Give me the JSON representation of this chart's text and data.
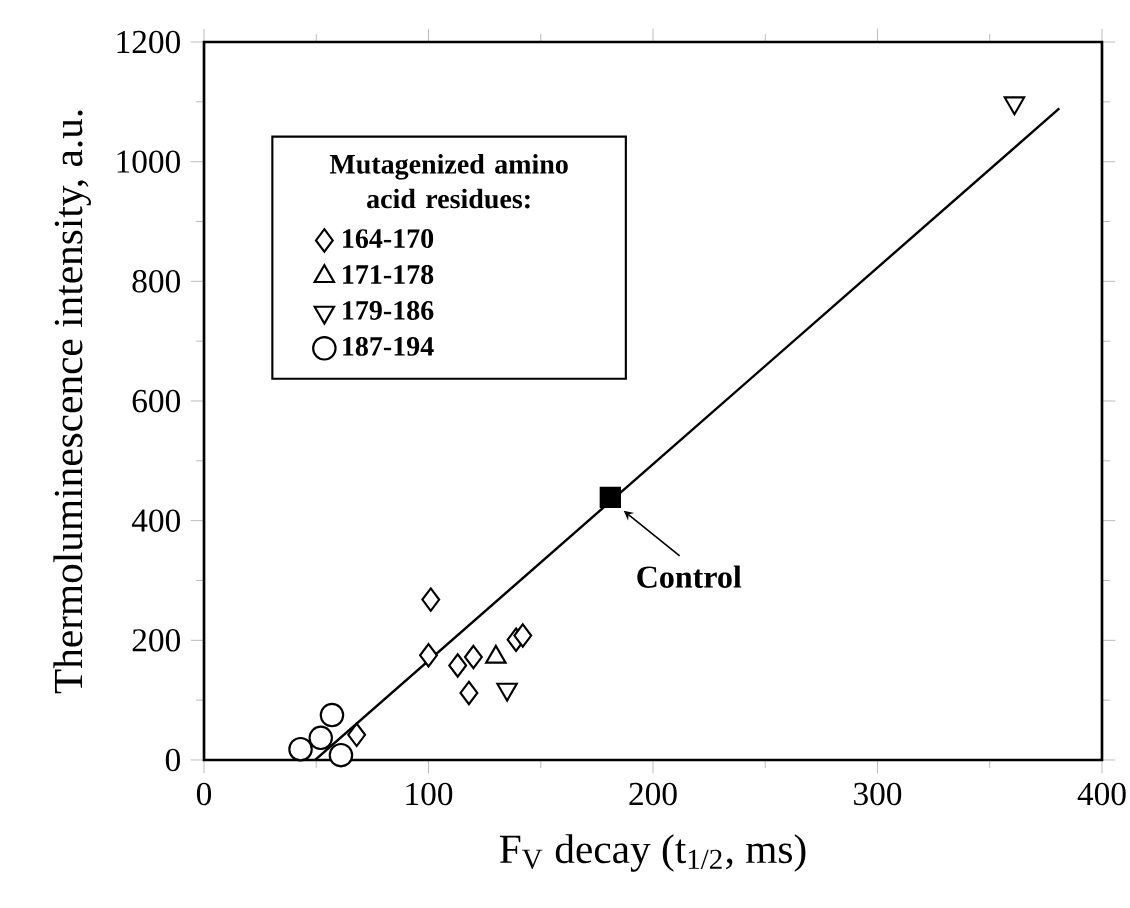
{
  "chart_data": {
    "type": "scatter",
    "xlabel": "F$_{V}$ decay (t$_{1/2}$, ms)",
    "ylabel": "Thermoluminescence intensity, a.u.",
    "legend_title": "Mutagenized amino acid residues:",
    "legend": "top left",
    "xlim": [
      0,
      400
    ],
    "xticks": [
      0,
      100,
      200,
      300,
      400
    ],
    "ylim": [
      0,
      1200
    ],
    "yticks": [
      0,
      200,
      400,
      600,
      800,
      1000,
      1200
    ],
    "series": [
      {
        "name": "164-170",
        "color": "#000000",
        "marker": "diamond",
        "x": [
          101,
          100,
          113,
          120,
          118,
          139,
          142,
          68
        ],
        "values": [
          268,
          175,
          158,
          172,
          112,
          201,
          208,
          42
        ]
      },
      {
        "name": "171-178",
        "color": "#000000",
        "marker": "triangle",
        "x": [
          130
        ],
        "values": [
          172
        ]
      },
      {
        "name": "179-186",
        "color": "#000000",
        "marker": "triangle-down",
        "x": [
          361,
          135
        ],
        "values": [
          1098,
          118
        ]
      },
      {
        "name": "187-194",
        "color": "#000000",
        "marker": "circle",
        "x": [
          43,
          52,
          57,
          61
        ],
        "values": [
          18,
          37,
          75,
          8
        ]
      },
      {
        "color": "#000000",
        "marker": "square",
        "x": [
          181
        ],
        "values": [
          439
        ]
      },
      {
        "type": "line",
        "color": "#000000",
        "marker": "none",
        "x": [
          49.5,
          381
        ],
        "values": [
          0,
          1089
        ]
      }
    ],
    "annotations": [
      {
        "text": "Control",
        "x": 181,
        "y": 439
      }
    ]
  }
}
